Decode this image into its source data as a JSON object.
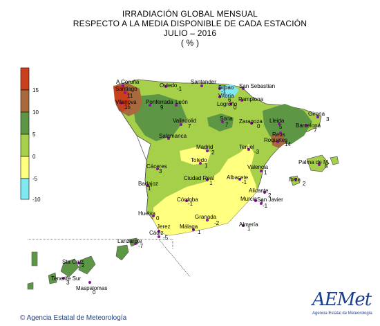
{
  "header": {
    "line1": "IRRADIACIÓN GLOBAL MENSUAL",
    "line2": "RESPECTO A LA MEDIA DISPONIBLE DE CADA ESTACIÓN",
    "line3": "JULIO – 2016",
    "line4": "( % )"
  },
  "legend": {
    "bands": [
      {
        "label": "15",
        "color": "#c8401c"
      },
      {
        "label": "10",
        "color": "#a86a3c"
      },
      {
        "label": "5",
        "color": "#5d9644"
      },
      {
        "label": "0",
        "color": "#a6d04a"
      },
      {
        "label": "-5",
        "color": "#ffff80"
      },
      {
        "label": "-10",
        "color": "#80e8f0"
      }
    ]
  },
  "stations": [
    {
      "name": "A Coruña",
      "value": ""
    },
    {
      "name": "Santiago",
      "value": "11"
    },
    {
      "name": "Vilanova",
      "value": "15"
    },
    {
      "name": "Oviedo",
      "value": "-1"
    },
    {
      "name": "Santander",
      "value": ""
    },
    {
      "name": "Bilbao",
      "value": "-1"
    },
    {
      "name": "San Sebastian",
      "value": ""
    },
    {
      "name": "Vitoria",
      "value": "6"
    },
    {
      "name": "Ponferrada",
      "value": "9"
    },
    {
      "name": "León",
      "value": ""
    },
    {
      "name": "Logroño",
      "value": "0"
    },
    {
      "name": "Pamplona",
      "value": ""
    },
    {
      "name": "Valladolid",
      "value": "7"
    },
    {
      "name": "Soria",
      "value": "7"
    },
    {
      "name": "Zaragoza",
      "value": "0"
    },
    {
      "name": "Lleida",
      "value": "5"
    },
    {
      "name": "Girona",
      "value": "3"
    },
    {
      "name": "Barcelona",
      "value": "7"
    },
    {
      "name": "Reus",
      "value": ""
    },
    {
      "name": "Roquetes",
      "value": "14"
    },
    {
      "name": "Salamanca",
      "value": ""
    },
    {
      "name": "Madrid",
      "value": "2"
    },
    {
      "name": "Teruel",
      "value": "-3"
    },
    {
      "name": "Toledo",
      "value": "1"
    },
    {
      "name": "Palma de M.",
      "value": "5"
    },
    {
      "name": "Cáceres",
      "value": "3"
    },
    {
      "name": "Valencia",
      "value": "1"
    },
    {
      "name": "Ciudad Real",
      "value": "1"
    },
    {
      "name": "Albacete",
      "value": "-1"
    },
    {
      "name": "Ibiza",
      "value": "2"
    },
    {
      "name": "Badajoz",
      "value": "1"
    },
    {
      "name": "Alicante",
      "value": "2"
    },
    {
      "name": "Córdoba",
      "value": "-1"
    },
    {
      "name": "Murcia",
      "value": "3"
    },
    {
      "name": "San Javier",
      "value": "-1"
    },
    {
      "name": "Huelva",
      "value": "0"
    },
    {
      "name": "Granada",
      "value": "-2"
    },
    {
      "name": "Jerez",
      "value": ""
    },
    {
      "name": "Cádiz",
      "value": "-5"
    },
    {
      "name": "Málaga",
      "value": "1"
    },
    {
      "name": "Almería",
      "value": "1"
    },
    {
      "name": "Lanzarote",
      "value": "-7"
    },
    {
      "name": "Sta Cruz",
      "value": "2"
    },
    {
      "name": "Tenerife Sur",
      "value": "3"
    },
    {
      "name": "Maspalomas",
      "value": "0"
    }
  ],
  "footer": {
    "copyright_symbol": "©",
    "agency": "Agencia Estatal de Meteorología"
  },
  "logo": {
    "text": "AEMet",
    "subtitle": "Agencia Estatal de Meteorología"
  }
}
